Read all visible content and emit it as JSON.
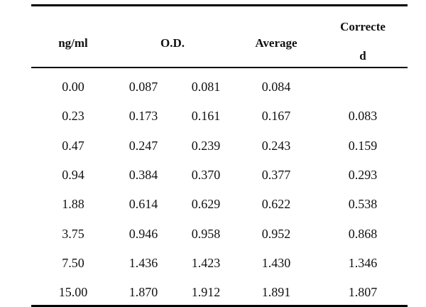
{
  "headers": {
    "col1": "ng/ml",
    "col2": "O.D.",
    "col3": "Average",
    "col4_line1": "Correcte",
    "col4_line2": "d"
  },
  "rows": [
    {
      "conc": "0.00",
      "od1": "0.087",
      "od2": "0.081",
      "avg": "0.084",
      "corr": ""
    },
    {
      "conc": "0.23",
      "od1": "0.173",
      "od2": "0.161",
      "avg": "0.167",
      "corr": "0.083"
    },
    {
      "conc": "0.47",
      "od1": "0.247",
      "od2": "0.239",
      "avg": "0.243",
      "corr": "0.159"
    },
    {
      "conc": "0.94",
      "od1": "0.384",
      "od2": "0.370",
      "avg": "0.377",
      "corr": "0.293"
    },
    {
      "conc": "1.88",
      "od1": "0.614",
      "od2": "0.629",
      "avg": "0.622",
      "corr": "0.538"
    },
    {
      "conc": "3.75",
      "od1": "0.946",
      "od2": "0.958",
      "avg": "0.952",
      "corr": "0.868"
    },
    {
      "conc": "7.50",
      "od1": "1.436",
      "od2": "1.423",
      "avg": "1.430",
      "corr": "1.346"
    },
    {
      "conc": "15.00",
      "od1": "1.870",
      "od2": "1.912",
      "avg": "1.891",
      "corr": "1.807"
    }
  ]
}
